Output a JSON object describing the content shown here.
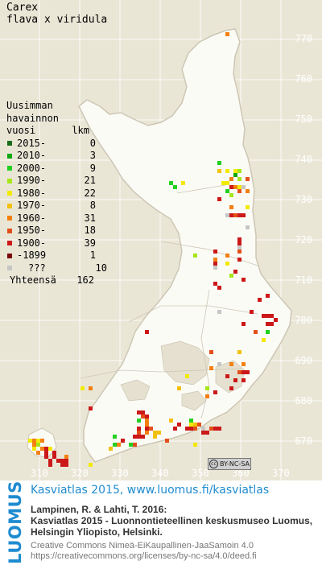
{
  "title": {
    "line1": "Carex",
    "line2": "flava x viridula"
  },
  "legend": {
    "heading1": "Uusimman",
    "heading2": "havainnon",
    "heading3_left": "vuosi",
    "heading3_right": "lkm",
    "items": [
      {
        "label": "2015-",
        "count": "0",
        "color": "#1a6e1a"
      },
      {
        "label": "2010-",
        "count": "3",
        "color": "#10a810"
      },
      {
        "label": "2000-",
        "count": "9",
        "color": "#22d022"
      },
      {
        "label": "1990-",
        "count": "21",
        "color": "#a6e61a"
      },
      {
        "label": "1980-",
        "count": "22",
        "color": "#f2ea06"
      },
      {
        "label": "1970-",
        "count": "8",
        "color": "#f2c00e"
      },
      {
        "label": "1960-",
        "count": "31",
        "color": "#f28012"
      },
      {
        "label": "1950-",
        "count": "18",
        "color": "#e2501a"
      },
      {
        "label": "1900-",
        "count": "39",
        "color": "#cc1818"
      },
      {
        "label": "-1899",
        "count": "1",
        "color": "#7a0a0a"
      },
      {
        "label": "???",
        "count": "10",
        "color": "#c6c6c6"
      }
    ],
    "total_label": "Yhteensä",
    "total_count": "162"
  },
  "grid": {
    "y_labels": [
      "770",
      "760",
      "750",
      "740",
      "730",
      "720",
      "710",
      "700",
      "690",
      "680",
      "670"
    ],
    "x_labels": [
      "310",
      "320",
      "330",
      "340",
      "350",
      "360",
      "370"
    ]
  },
  "license_badge": "BY-NC-SA",
  "footer": {
    "brand": "LUOMUS",
    "site": "Kasviatlas 2015, www.luomus.fi/kasviatlas",
    "citation1": "Lampinen, R. & Lahti, T. 2016:",
    "citation2": "Kasviatlas 2015 - Luonnontieteellinen keskusmuseo Luomus,",
    "citation3": "Helsingin Yliopisto, Helsinki.",
    "license1": "Creative Commons Nimeä-EiKaupallinen-JaaSamoin 4.0",
    "license2": "https://creativecommons.org/licenses/by-nc-sa/4.0/deed.fi"
  }
}
